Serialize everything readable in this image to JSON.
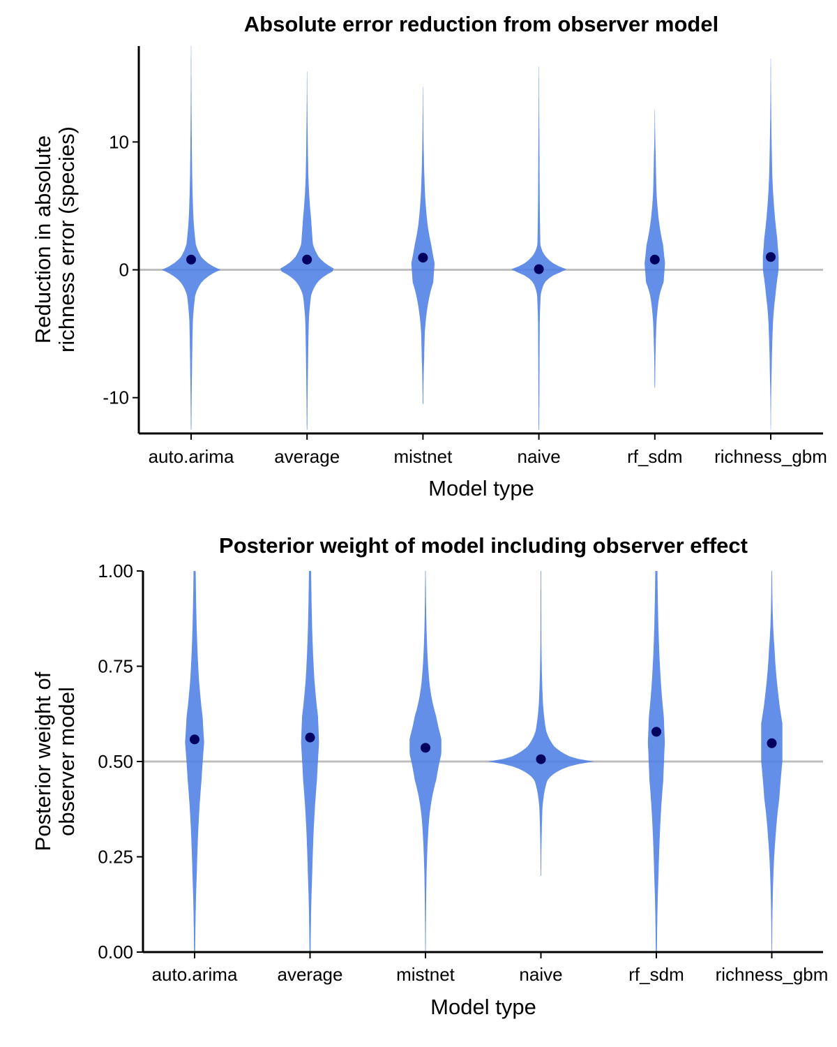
{
  "chart_data": [
    {
      "type": "violin",
      "title": "Absolute error reduction from observer model",
      "xlabel": "Model type",
      "ylabel_lines": [
        "Reduction in absolute",
        "richness error (species)"
      ],
      "ylim": [
        -12.8,
        17.5
      ],
      "yticks": [
        -10,
        0,
        10
      ],
      "ytick_labels": [
        "-10",
        "0",
        "10"
      ],
      "reference_line": 0,
      "fill_color": "#4f7fe6",
      "point_color": "#00005e",
      "ref_color": "#bebebe",
      "categories": [
        "auto.arima",
        "average",
        "mistnet",
        "naive",
        "rf_sdm",
        "richness_gbm"
      ],
      "means": [
        0.8,
        0.8,
        0.95,
        0.05,
        0.8,
        1.0
      ],
      "ranges": [
        [
          -12.5,
          17.5
        ],
        [
          -12.5,
          15.5
        ],
        [
          -10.5,
          14.3
        ],
        [
          -12.5,
          15.9
        ],
        [
          -9.2,
          12.5
        ],
        [
          -12.5,
          16.5
        ]
      ],
      "profiles": [
        [
          [
            -12.5,
            0.01
          ],
          [
            -8,
            0.03
          ],
          [
            -4,
            0.06
          ],
          [
            -2,
            0.14
          ],
          [
            -1,
            0.35
          ],
          [
            0,
            1
          ],
          [
            1,
            0.35
          ],
          [
            2,
            0.16
          ],
          [
            4,
            0.08
          ],
          [
            7,
            0.04
          ],
          [
            11,
            0.02
          ],
          [
            17.5,
            0.005
          ]
        ],
        [
          [
            -12.5,
            0.01
          ],
          [
            -8,
            0.03
          ],
          [
            -4,
            0.06
          ],
          [
            -2,
            0.14
          ],
          [
            -1,
            0.35
          ],
          [
            0,
            1
          ],
          [
            1,
            0.4
          ],
          [
            2,
            0.2
          ],
          [
            4,
            0.14
          ],
          [
            7,
            0.05
          ],
          [
            11,
            0.02
          ],
          [
            15.5,
            0.005
          ]
        ],
        [
          [
            -10.5,
            0.01
          ],
          [
            -7,
            0.04
          ],
          [
            -5,
            0.06
          ],
          [
            -3,
            0.15
          ],
          [
            -1,
            0.35
          ],
          [
            0.5,
            0.4
          ],
          [
            2,
            0.28
          ],
          [
            3.5,
            0.16
          ],
          [
            6,
            0.07
          ],
          [
            9,
            0.03
          ],
          [
            14.3,
            0.005
          ]
        ],
        [
          [
            -12.5,
            0.01
          ],
          [
            -8,
            0.02
          ],
          [
            -4,
            0.03
          ],
          [
            -2,
            0.06
          ],
          [
            -1,
            0.2
          ],
          [
            0,
            1
          ],
          [
            1,
            0.25
          ],
          [
            2,
            0.05
          ],
          [
            5,
            0.03
          ],
          [
            9,
            0.02
          ],
          [
            15.9,
            0.005
          ]
        ],
        [
          [
            -9.2,
            0.01
          ],
          [
            -6,
            0.03
          ],
          [
            -4,
            0.06
          ],
          [
            -2,
            0.16
          ],
          [
            -1,
            0.3
          ],
          [
            0.5,
            0.35
          ],
          [
            2,
            0.28
          ],
          [
            3.5,
            0.16
          ],
          [
            6,
            0.06
          ],
          [
            9,
            0.03
          ],
          [
            12.5,
            0.005
          ]
        ],
        [
          [
            -12.5,
            0.005
          ],
          [
            -8,
            0.03
          ],
          [
            -4,
            0.08
          ],
          [
            -2,
            0.16
          ],
          [
            0,
            0.27
          ],
          [
            1,
            0.27
          ],
          [
            2.5,
            0.22
          ],
          [
            4.5,
            0.13
          ],
          [
            7,
            0.06
          ],
          [
            10,
            0.03
          ],
          [
            16.5,
            0.005
          ]
        ]
      ]
    },
    {
      "type": "violin",
      "title": "Posterior weight of model including observer effect",
      "xlabel": "Model type",
      "ylabel_lines": [
        "Posterior weight of",
        "observer model"
      ],
      "ylim": [
        0,
        1
      ],
      "yticks": [
        0,
        0.25,
        0.5,
        0.75,
        1
      ],
      "ytick_labels": [
        "0.00",
        "0.25",
        "0.50",
        "0.75",
        "1.00"
      ],
      "reference_line": 0.5,
      "fill_color": "#4f7fe6",
      "point_color": "#00005e",
      "ref_color": "#bebebe",
      "categories": [
        "auto.arima",
        "average",
        "mistnet",
        "naive",
        "rf_sdm",
        "richness_gbm"
      ],
      "means": [
        0.558,
        0.563,
        0.536,
        0.506,
        0.578,
        0.548
      ],
      "ranges": [
        [
          0,
          1
        ],
        [
          0,
          1
        ],
        [
          0,
          1
        ],
        [
          0.2,
          1
        ],
        [
          0,
          1
        ],
        [
          0,
          1
        ]
      ],
      "profiles": [
        [
          [
            0,
            0.01
          ],
          [
            0.2,
            0.04
          ],
          [
            0.35,
            0.08
          ],
          [
            0.45,
            0.13
          ],
          [
            0.55,
            0.18
          ],
          [
            0.62,
            0.15
          ],
          [
            0.72,
            0.08
          ],
          [
            0.85,
            0.04
          ],
          [
            1,
            0.02
          ]
        ],
        [
          [
            0,
            0.01
          ],
          [
            0.2,
            0.04
          ],
          [
            0.35,
            0.08
          ],
          [
            0.45,
            0.13
          ],
          [
            0.55,
            0.17
          ],
          [
            0.62,
            0.15
          ],
          [
            0.72,
            0.08
          ],
          [
            0.85,
            0.04
          ],
          [
            1,
            0.02
          ]
        ],
        [
          [
            0,
            0.005
          ],
          [
            0.2,
            0.02
          ],
          [
            0.35,
            0.07
          ],
          [
            0.45,
            0.2
          ],
          [
            0.52,
            0.3
          ],
          [
            0.56,
            0.3
          ],
          [
            0.62,
            0.2
          ],
          [
            0.7,
            0.08
          ],
          [
            0.85,
            0.02
          ],
          [
            1,
            0.005
          ]
        ],
        [
          [
            0.2,
            0.005
          ],
          [
            0.38,
            0.03
          ],
          [
            0.45,
            0.12
          ],
          [
            0.49,
            0.6
          ],
          [
            0.5,
            1
          ],
          [
            0.51,
            0.6
          ],
          [
            0.54,
            0.25
          ],
          [
            0.58,
            0.1
          ],
          [
            0.65,
            0.04
          ],
          [
            0.8,
            0.01
          ],
          [
            1,
            0.005
          ]
        ],
        [
          [
            0,
            0.01
          ],
          [
            0.2,
            0.04
          ],
          [
            0.35,
            0.08
          ],
          [
            0.45,
            0.13
          ],
          [
            0.55,
            0.16
          ],
          [
            0.62,
            0.14
          ],
          [
            0.72,
            0.08
          ],
          [
            0.85,
            0.04
          ],
          [
            1,
            0.02
          ]
        ],
        [
          [
            0,
            0.005
          ],
          [
            0.2,
            0.03
          ],
          [
            0.3,
            0.07
          ],
          [
            0.4,
            0.14
          ],
          [
            0.5,
            0.2
          ],
          [
            0.6,
            0.2
          ],
          [
            0.68,
            0.12
          ],
          [
            0.8,
            0.05
          ],
          [
            1,
            0.005
          ]
        ]
      ]
    }
  ]
}
